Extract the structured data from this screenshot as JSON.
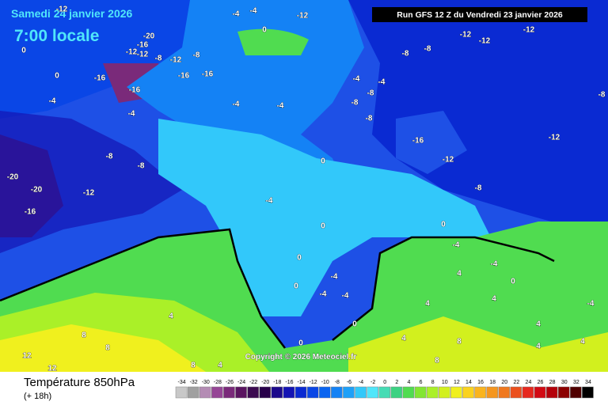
{
  "header": {
    "date": "Samedi 24 janvier 2026",
    "time": "7:00 locale",
    "run": "Run GFS 12 Z du Vendredi 23 janvier 2026"
  },
  "copyright": "Copyright © 2026 Meteociel.fr",
  "legend": {
    "title": "Température 850hPa",
    "step": "(+ 18h)",
    "scale": [
      "-34",
      "-32",
      "-30",
      "-28",
      "-26",
      "-24",
      "-22",
      "-20",
      "-18",
      "-16",
      "-14",
      "-12",
      "-10",
      "-8",
      "-6",
      "-4",
      "-2",
      "0",
      "2",
      "4",
      "6",
      "8",
      "10",
      "12",
      "14",
      "16",
      "18",
      "20",
      "22",
      "24",
      "26",
      "28",
      "30",
      "32",
      "34"
    ],
    "colors": [
      "#c8c8c8",
      "#a0a0a0",
      "#b48cb4",
      "#964696",
      "#7a2a7a",
      "#5a1460",
      "#3c0a50",
      "#28004a",
      "#1c0a8c",
      "#1414b4",
      "#0a2ad2",
      "#0a46e6",
      "#0a64f0",
      "#1482f5",
      "#1ea0f8",
      "#32c8fa",
      "#50e6fa",
      "#46dcb4",
      "#3cd282",
      "#50dc50",
      "#82e632",
      "#aaf028",
      "#d2f01e",
      "#f0f01e",
      "#fad21e",
      "#fab41e",
      "#f5961e",
      "#f0781e",
      "#eb501e",
      "#e6281e",
      "#d20a14",
      "#b4000a",
      "#8c0000",
      "#500000",
      "#000000"
    ]
  },
  "map_labels": [
    "-12",
    "-4",
    "-4",
    "-12",
    "0",
    "-20",
    "-16",
    "-12",
    "-12",
    "-8",
    "-12",
    "-8",
    "-16",
    "-16",
    "-16",
    "-16",
    "0",
    "0",
    "-4",
    "-4",
    "-4",
    "-4",
    "-4",
    "-4",
    "-8",
    "-8",
    "-8",
    "-8",
    "-8",
    "-12",
    "-12",
    "-12",
    "-8",
    "-16",
    "-12",
    "-12",
    "-8",
    "-8",
    "-8",
    "-12",
    "-20",
    "-20",
    "-16",
    "-4",
    "0",
    "0",
    "0",
    "0",
    "-4",
    "-4",
    "-4",
    "0",
    "0",
    "0",
    "-4",
    "-4",
    "0",
    "-4",
    "4",
    "4",
    "4",
    "4",
    "4",
    "4",
    "4",
    "8",
    "8",
    "12",
    "12",
    "8",
    "4",
    "4",
    "8",
    "8"
  ]
}
